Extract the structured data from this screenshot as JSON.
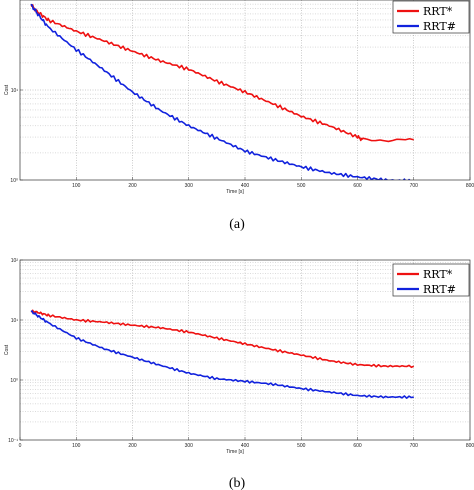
{
  "chart_data": [
    {
      "type": "line",
      "panel_label": "(a)",
      "xlabel": "Time [s]",
      "ylabel": "Cost",
      "xlim": [
        0,
        800
      ],
      "xticks": [
        100,
        200,
        300,
        400,
        500,
        600,
        700,
        800
      ],
      "y_scale": "log",
      "ylim": [
        1,
        100
      ],
      "yticks": [
        {
          "value": 10,
          "label": "10¹"
        },
        {
          "value": 1,
          "label": "10⁰"
        }
      ],
      "grid": true,
      "legend_position": "top-right",
      "series": [
        {
          "name": "RRT*",
          "color": "#ee1111",
          "x": [
            20,
            30,
            50,
            100,
            150,
            200,
            250,
            300,
            350,
            400,
            450,
            500,
            550,
            600,
            610,
            700
          ],
          "y": [
            88,
            75,
            60,
            45,
            35,
            27,
            21,
            17,
            12.5,
            9.5,
            7.0,
            5.1,
            4.0,
            3.0,
            2.8,
            2.8
          ]
        },
        {
          "name": "RRT#",
          "color": "#1122dd",
          "x": [
            20,
            30,
            50,
            100,
            150,
            200,
            250,
            300,
            350,
            400,
            450,
            500,
            550,
            600,
            650,
            700
          ],
          "y": [
            88,
            72,
            50,
            28,
            16.5,
            9.5,
            5.9,
            4.0,
            2.9,
            2.1,
            1.7,
            1.4,
            1.2,
            1.08,
            1.0,
            0.97
          ]
        }
      ]
    },
    {
      "type": "line",
      "panel_label": "(b)",
      "xlabel": "Time [s]",
      "ylabel": "Cost",
      "xlim": [
        0,
        800
      ],
      "xticks": [
        0,
        100,
        200,
        300,
        400,
        500,
        600,
        700,
        800
      ],
      "y_scale": "log",
      "ylim": [
        0.1,
        100
      ],
      "yticks": [
        {
          "value": 100,
          "label": "10²"
        },
        {
          "value": 10,
          "label": "10¹"
        },
        {
          "value": 1,
          "label": "10⁰"
        },
        {
          "value": 0.1,
          "label": "10⁻¹"
        }
      ],
      "grid": true,
      "legend_position": "top-right",
      "series": [
        {
          "name": "RRT*",
          "color": "#ee1111",
          "x": [
            20,
            30,
            50,
            100,
            150,
            200,
            250,
            300,
            350,
            400,
            450,
            500,
            550,
            600,
            650,
            700
          ],
          "y": [
            14,
            13.5,
            12,
            10,
            9.2,
            8.2,
            7.4,
            6.3,
            5.0,
            4.0,
            3.2,
            2.6,
            2.1,
            1.8,
            1.7,
            1.7
          ]
        },
        {
          "name": "RRT#",
          "color": "#1122dd",
          "x": [
            20,
            30,
            50,
            100,
            150,
            200,
            250,
            300,
            350,
            400,
            450,
            500,
            550,
            600,
            650,
            700
          ],
          "y": [
            14,
            12,
            9,
            5.0,
            3.3,
            2.4,
            1.75,
            1.3,
            1.05,
            0.95,
            0.85,
            0.72,
            0.63,
            0.55,
            0.52,
            0.52
          ]
        }
      ]
    }
  ]
}
